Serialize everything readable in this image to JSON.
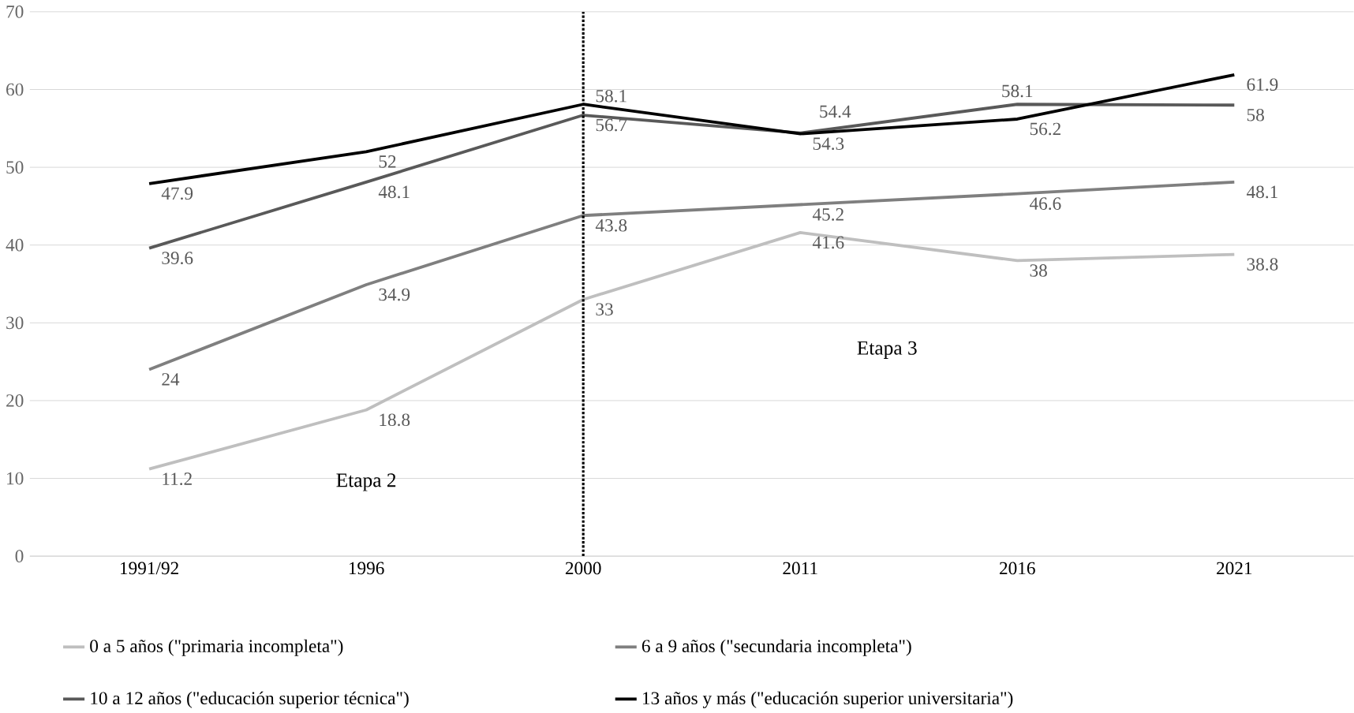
{
  "chart_data": {
    "type": "line",
    "categories": [
      "1991/92",
      "1996",
      "2000",
      "2011",
      "2016",
      "2021"
    ],
    "series": [
      {
        "name": "0 a 5 años (\"primaria incompleta\")",
        "color": "#bfbfbf",
        "values": [
          11.2,
          18.8,
          33,
          41.6,
          38,
          38.8
        ]
      },
      {
        "name": "6 a 9 años (\"secundaria incompleta\")",
        "color": "#7f7f7f",
        "values": [
          24,
          34.9,
          43.8,
          45.2,
          46.6,
          48.1
        ]
      },
      {
        "name": "10 a 12 años (\"educación superior técnica\")",
        "color": "#595959",
        "values": [
          39.6,
          48.1,
          56.7,
          54.4,
          58.1,
          58
        ]
      },
      {
        "name": "13 años y más (\"educación superior universitaria\")",
        "color": "#000000",
        "values": [
          47.9,
          52,
          58.1,
          54.3,
          56.2,
          61.9
        ]
      }
    ],
    "ylim": [
      0,
      70
    ],
    "yticks": [
      0,
      10,
      20,
      30,
      40,
      50,
      60,
      70
    ],
    "ref_lines": [
      {
        "axis": "x",
        "value": "2000",
        "color": "#000000",
        "line_style": "dotted"
      }
    ],
    "annotations": [
      "Etapa 2",
      "Etapa 3"
    ],
    "grid": "y",
    "legend": "bottom",
    "data_labels": true,
    "marker": "none",
    "line_style": "solid"
  }
}
